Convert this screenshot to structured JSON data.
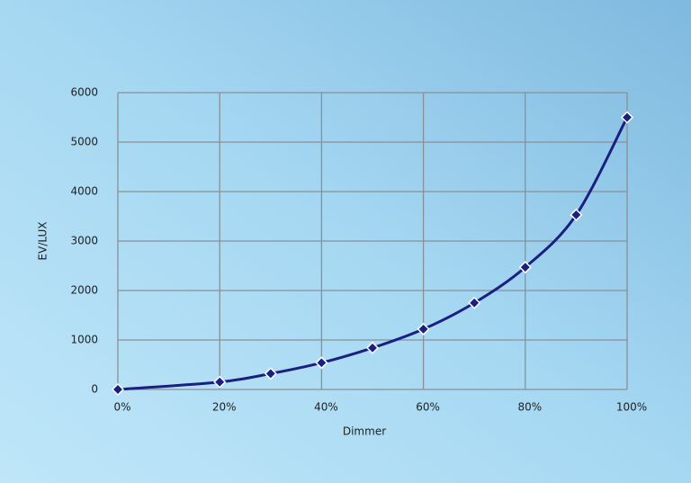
{
  "chart_data": {
    "type": "line",
    "x_label": "Dimmer",
    "y_label": "EV/LUX",
    "x": [
      0,
      20,
      30,
      40,
      50,
      60,
      70,
      80,
      90,
      100
    ],
    "series": [
      {
        "name": "EV/LUX",
        "color": "#1a1f80",
        "values": [
          0,
          150,
          320,
          540,
          840,
          1220,
          1750,
          2470,
          3530,
          5500
        ]
      }
    ],
    "xlim": [
      0,
      100
    ],
    "xticks": [
      {
        "value": 0,
        "label": "0%"
      },
      {
        "value": 20,
        "label": "20%"
      },
      {
        "value": 40,
        "label": "40%"
      },
      {
        "value": 60,
        "label": "60%"
      },
      {
        "value": 80,
        "label": "80%"
      },
      {
        "value": 100,
        "label": "100%"
      }
    ],
    "ylim": [
      0,
      6000
    ],
    "yticks": [
      0,
      1000,
      2000,
      3000,
      4000,
      5000,
      6000
    ],
    "grid": true
  }
}
